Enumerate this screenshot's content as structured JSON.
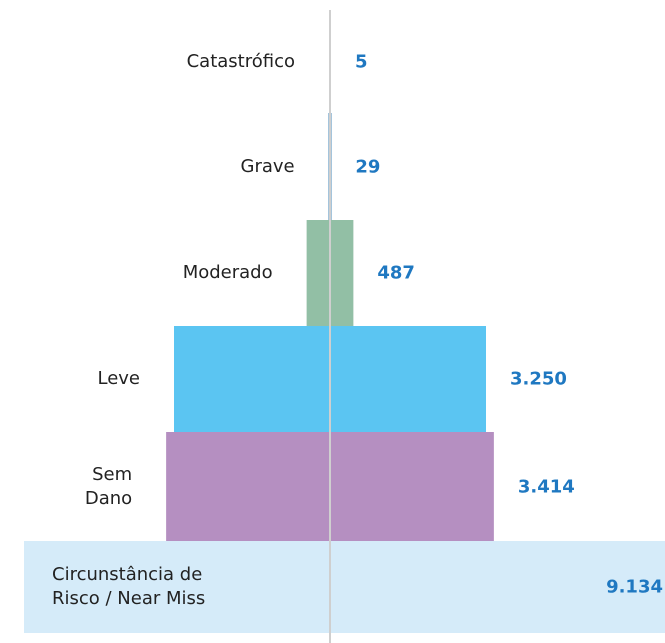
{
  "chart_data": {
    "type": "pyramid",
    "categories": [
      "Catastrófico",
      "Grave",
      "Moderado",
      "Leve",
      "Sem\nDano",
      "Circunstância de\nRisco / Near Miss"
    ],
    "values": [
      5,
      29,
      487,
      3250,
      3414,
      9134
    ],
    "value_labels": [
      "5",
      "29",
      "487",
      "3.250",
      "3.414",
      "9.134"
    ],
    "colors": [
      "#1a6aa8",
      "#1a6aa8",
      "#92bfa5",
      "#5bc5f2",
      "#b58fc1",
      "#d5ebf9"
    ]
  }
}
